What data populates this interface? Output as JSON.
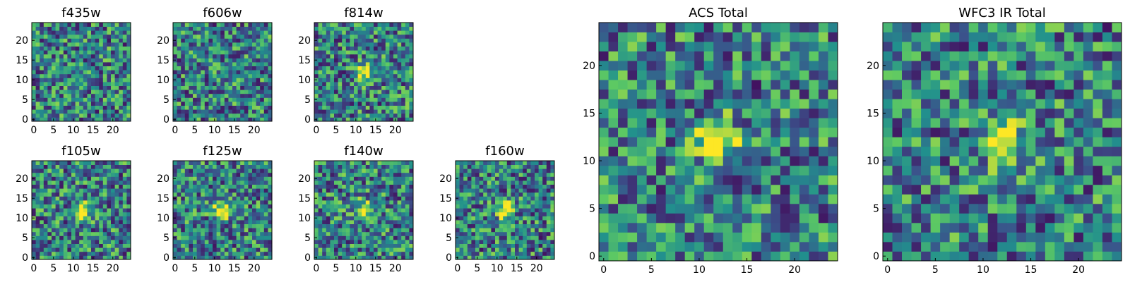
{
  "figure": {
    "colormap": "viridis"
  },
  "chart_data": [
    {
      "type": "heatmap",
      "title": "f435w",
      "grid": [
        25,
        25
      ],
      "xlim": [
        0,
        24
      ],
      "ylim": [
        0,
        24
      ],
      "xticks": [
        0,
        5,
        10,
        15,
        20
      ],
      "yticks": [
        0,
        5,
        10,
        15,
        20
      ],
      "source_peak": null
    },
    {
      "type": "heatmap",
      "title": "f606w",
      "grid": [
        25,
        25
      ],
      "xlim": [
        0,
        24
      ],
      "ylim": [
        0,
        24
      ],
      "xticks": [
        0,
        5,
        10,
        15,
        20
      ],
      "yticks": [
        0,
        5,
        10,
        15,
        20
      ],
      "source_peak": null
    },
    {
      "type": "heatmap",
      "title": "f814w",
      "grid": [
        25,
        25
      ],
      "xlim": [
        0,
        24
      ],
      "ylim": [
        0,
        24
      ],
      "xticks": [
        0,
        5,
        10,
        15,
        20
      ],
      "yticks": [
        0,
        5,
        10,
        15,
        20
      ],
      "source_peak": [
        12,
        12
      ]
    },
    {
      "type": "heatmap",
      "title": "f105w",
      "grid": [
        25,
        25
      ],
      "xlim": [
        0,
        24
      ],
      "ylim": [
        0,
        24
      ],
      "xticks": [
        0,
        5,
        10,
        15,
        20
      ],
      "yticks": [
        0,
        5,
        10,
        15,
        20
      ],
      "source_peak": [
        12,
        12
      ]
    },
    {
      "type": "heatmap",
      "title": "f125w",
      "grid": [
        25,
        25
      ],
      "xlim": [
        0,
        24
      ],
      "ylim": [
        0,
        24
      ],
      "xticks": [
        0,
        5,
        10,
        15,
        20
      ],
      "yticks": [
        0,
        5,
        10,
        15,
        20
      ],
      "source_peak": [
        12,
        12
      ]
    },
    {
      "type": "heatmap",
      "title": "f140w",
      "grid": [
        25,
        25
      ],
      "xlim": [
        0,
        24
      ],
      "ylim": [
        0,
        24
      ],
      "xticks": [
        0,
        5,
        10,
        15,
        20
      ],
      "yticks": [
        0,
        5,
        10,
        15,
        20
      ],
      "source_peak": [
        12,
        12
      ]
    },
    {
      "type": "heatmap",
      "title": "f160w",
      "grid": [
        25,
        25
      ],
      "xlim": [
        0,
        24
      ],
      "ylim": [
        0,
        24
      ],
      "xticks": [
        0,
        5,
        10,
        15,
        20
      ],
      "yticks": [
        0,
        5,
        10,
        15,
        20
      ],
      "source_peak": [
        12,
        12
      ]
    },
    {
      "type": "heatmap",
      "title": "ACS Total",
      "grid": [
        25,
        25
      ],
      "xlim": [
        0,
        24
      ],
      "ylim": [
        0,
        24
      ],
      "xticks": [
        0,
        5,
        10,
        15,
        20
      ],
      "yticks": [
        0,
        5,
        10,
        15,
        20
      ],
      "source_peak": [
        12,
        12
      ]
    },
    {
      "type": "heatmap",
      "title": "WFC3 IR Total",
      "grid": [
        25,
        25
      ],
      "xlim": [
        0,
        24
      ],
      "ylim": [
        0,
        24
      ],
      "xticks": [
        0,
        5,
        10,
        15,
        20
      ],
      "yticks": [
        0,
        5,
        10,
        15,
        20
      ],
      "source_peak": [
        12,
        12
      ]
    }
  ]
}
